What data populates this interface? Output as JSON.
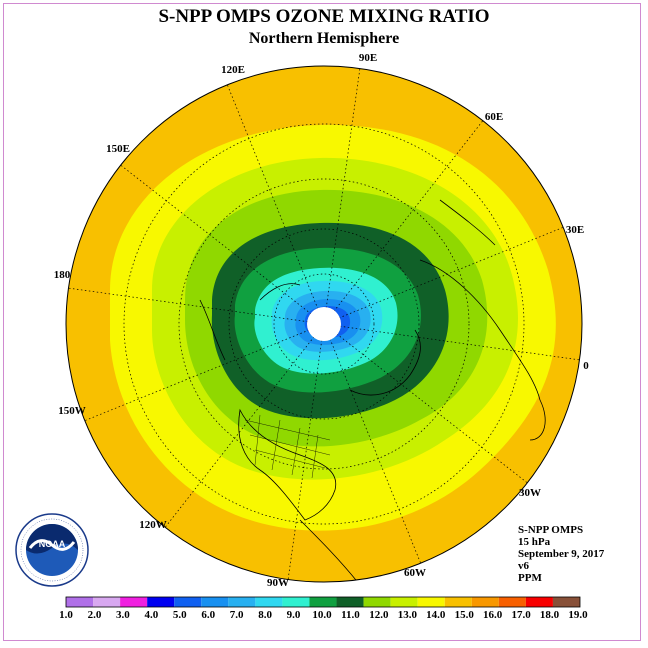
{
  "header": {
    "title": "S-NPP OMPS OZONE MIXING RATIO",
    "subtitle": "Northern Hemisphere"
  },
  "meridian_labels": [
    {
      "text": "90E"
    },
    {
      "text": "60E"
    },
    {
      "text": "30E"
    },
    {
      "text": "0"
    },
    {
      "text": "30W"
    },
    {
      "text": "60W"
    },
    {
      "text": "90W"
    },
    {
      "text": "120W"
    },
    {
      "text": "150W"
    },
    {
      "text": "180"
    },
    {
      "text": "150E"
    },
    {
      "text": "120E"
    }
  ],
  "info": {
    "instrument": "S-NPP OMPS",
    "level": "15 hPa",
    "date": "September 9, 2017",
    "version": "v6",
    "units": "PPM"
  },
  "logo": {
    "text": "NOAA",
    "ring_text": "NATIONAL OCEANIC AND ATMOSPHERIC ADMINISTRATION · U.S. DEPARTMENT OF COMMERCE"
  },
  "colorbar": {
    "labels": [
      "1.0",
      "2.0",
      "3.0",
      "4.0",
      "5.0",
      "6.0",
      "7.0",
      "8.0",
      "9.0",
      "10.0",
      "11.0",
      "12.0",
      "13.0",
      "14.0",
      "15.0",
      "16.0",
      "17.0",
      "18.0",
      "19.0"
    ],
    "colors": [
      "#b070e8",
      "#d8a8f0",
      "#f020e0",
      "#0000f0",
      "#1060f0",
      "#1890f0",
      "#28b0f0",
      "#30d8f0",
      "#30f0d0",
      "#10a040",
      "#106028",
      "#90d800",
      "#c8f000",
      "#f8f800",
      "#f8c000",
      "#f89800",
      "#f86000",
      "#f80000",
      "#885038"
    ]
  },
  "map_data": {
    "projection": "north polar stereographic",
    "center_ozone_ppm_range": "4.0-5.0",
    "bands_outer_to_inner": [
      "14.0-15.0",
      "13.0-14.0",
      "12.0-13.0",
      "11.0-12.0",
      "10.0-11.0",
      "9.0-10.0",
      "8.0-9.0",
      "7.0-8.0",
      "6.0-7.0",
      "5.0-6.0"
    ]
  }
}
